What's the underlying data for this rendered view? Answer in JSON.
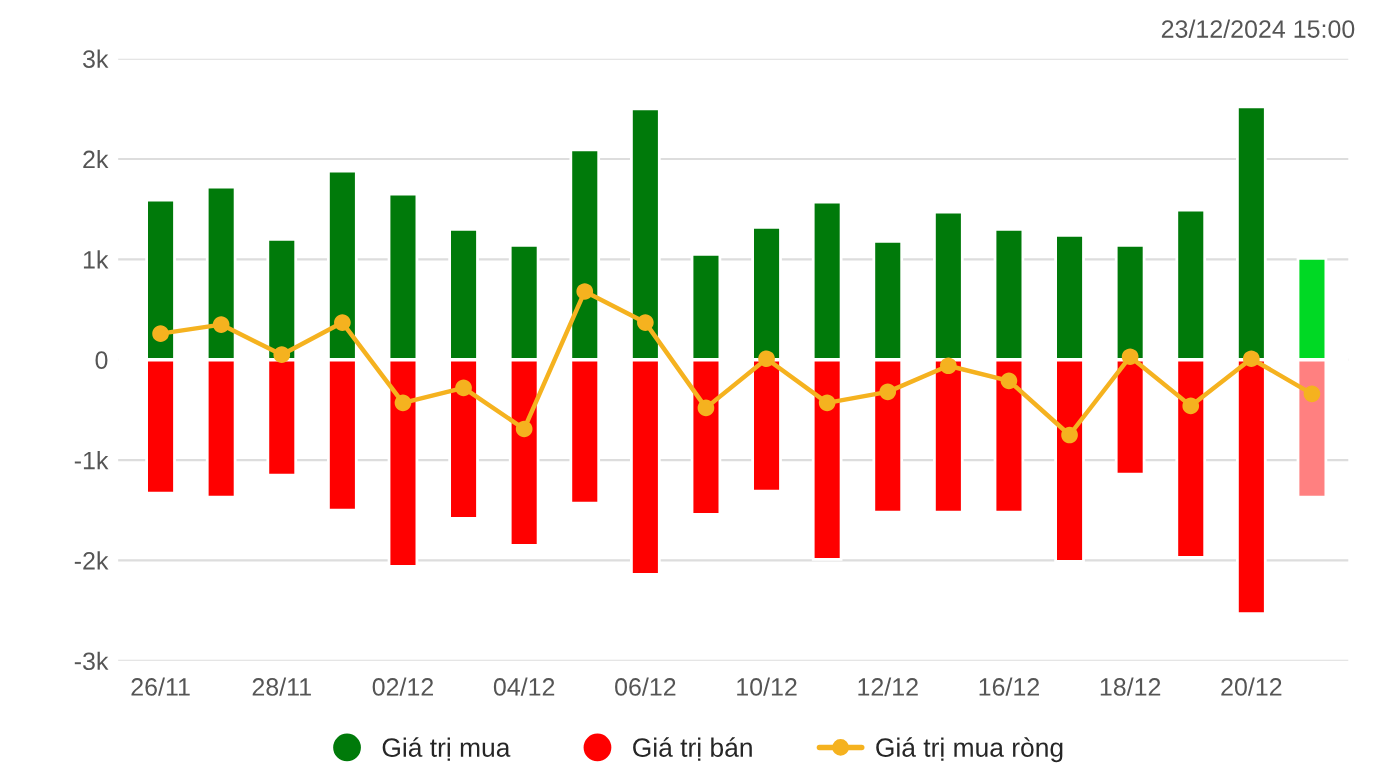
{
  "chart_data": {
    "type": "bar",
    "categories": [
      "26/11",
      null,
      "28/11",
      null,
      "02/12",
      null,
      "04/12",
      null,
      "06/12",
      null,
      "10/12",
      null,
      "12/12",
      null,
      "16/12",
      null,
      "18/12",
      null,
      "20/12",
      null
    ],
    "series": [
      {
        "name": "Giá trị mua",
        "color": "#007a0a",
        "colors": [
          "#007a0a",
          "#007a0a",
          "#007a0a",
          "#007a0a",
          "#007a0a",
          "#007a0a",
          "#007a0a",
          "#007a0a",
          "#007a0a",
          "#007a0a",
          "#007a0a",
          "#007a0a",
          "#007a0a",
          "#007a0a",
          "#007a0a",
          "#007a0a",
          "#007a0a",
          "#007a0a",
          "#007a0a",
          "#00d924"
        ],
        "values": [
          1590,
          1720,
          1200,
          1880,
          1650,
          1300,
          1140,
          2090,
          2500,
          1050,
          1320,
          1570,
          1180,
          1470,
          1300,
          1240,
          1140,
          1490,
          2520,
          1010
        ]
      },
      {
        "name": "Giá trị bán",
        "color": "#ff0000",
        "colors": [
          "#ff0000",
          "#ff0000",
          "#ff0000",
          "#ff0000",
          "#ff0000",
          "#ff0000",
          "#ff0000",
          "#ff0000",
          "#ff0000",
          "#ff0000",
          "#ff0000",
          "#ff0000",
          "#ff0000",
          "#ff0000",
          "#ff0000",
          "#ff0000",
          "#ff0000",
          "#ff0000",
          "#ff0000",
          "#ff8080"
        ],
        "values": [
          -1330,
          -1370,
          -1150,
          -1500,
          -2060,
          -1580,
          -1850,
          -1430,
          -2140,
          -1540,
          -1310,
          -1990,
          -1520,
          -1520,
          -1520,
          -2010,
          -1140,
          -1970,
          -2530,
          -1370
        ]
      },
      {
        "name": "Giá trị mua ròng",
        "type": "line",
        "color": "#f5b21f",
        "marker": "circle",
        "values": [
          260,
          350,
          50,
          370,
          -430,
          -280,
          -690,
          680,
          370,
          -480,
          10,
          -430,
          -320,
          -60,
          -210,
          -750,
          30,
          -460,
          10,
          -340
        ]
      }
    ],
    "ylim": [
      -3000,
      3000
    ],
    "yticks": [
      {
        "value": -3000,
        "label": "-3k"
      },
      {
        "value": -2000,
        "label": "-2k"
      },
      {
        "value": -1000,
        "label": "-1k"
      },
      0,
      {
        "value": 1000,
        "label": "1k"
      },
      {
        "value": 2000,
        "label": "2k"
      },
      {
        "value": 3000,
        "label": "3k"
      }
    ],
    "stacked": true,
    "grid": "y",
    "legend": "bottom",
    "annotations": [
      "23/12/2024 15:00"
    ]
  }
}
